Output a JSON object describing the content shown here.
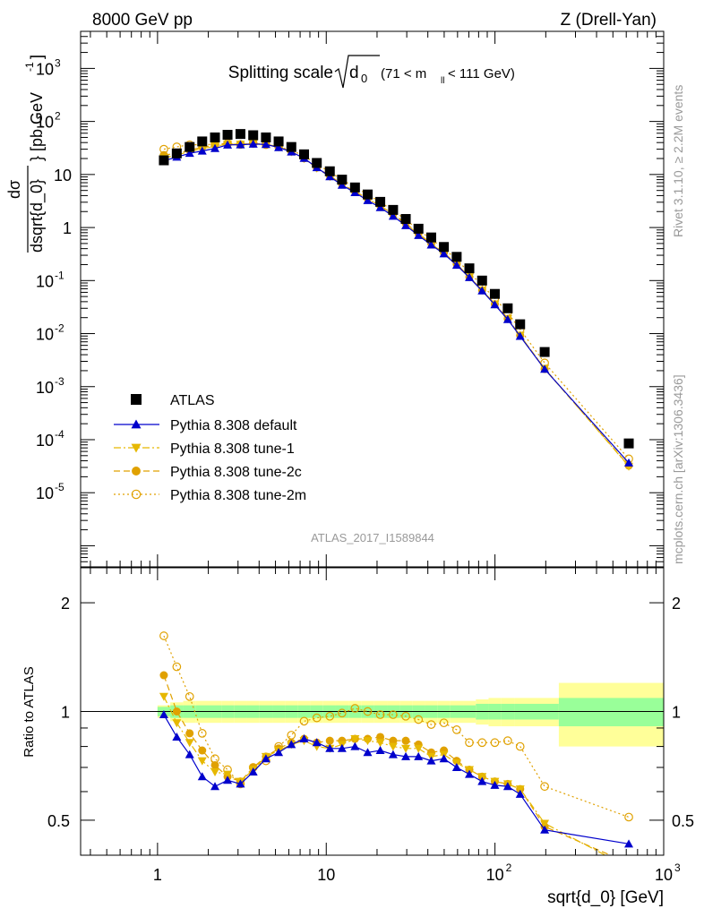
{
  "header": {
    "left": "8000 GeV pp",
    "right": "Z (Drell-Yan)"
  },
  "watermark": {
    "rivet": "Rivet 3.1.10, ≥ 2.2M events",
    "mcplots": "mcplots.cern.ch [arXiv:1306.3436]"
  },
  "chart_data": {
    "type": "scatter",
    "title": "Splitting scale √d₀ (71 < m_ll < 111 GeV)",
    "title_main": "Splitting scale",
    "title_sym": "d",
    "title_sub": "0",
    "title_range": "(71 < m",
    "title_range_sub": "ll",
    "title_range_end": " < 111 GeV)",
    "analysis_label": "ATLAS_2017_I1589844",
    "xlabel": "sqrt{d_0} [GeV]",
    "ylabel_top": "dσ",
    "ylabel_bottom": "dsqrt{d_0}",
    "ylabel_units": "} [pb,GeV",
    "ylabel_units_sup": "-1",
    "ylabel_units_end": "]",
    "ylabel_ratio": "Ratio to ATLAS",
    "xscale": "log",
    "yscale": "log",
    "xlim": [
      0.35,
      1000
    ],
    "ylim": [
      4e-07,
      5000
    ],
    "ratio_ylim": [
      0.4,
      2.5
    ],
    "legend_position": "bottom-left",
    "x_tick_labels": [
      "1",
      "10",
      "10",
      "10"
    ],
    "x_tick_sups": [
      "",
      "",
      "2",
      "3"
    ],
    "y_tick_labels": [
      "10",
      "10",
      "10",
      "10",
      "10",
      "1",
      "10",
      "10",
      "10",
      "10",
      "10"
    ],
    "y_tick_sups": [
      "-5",
      "-4",
      "-3",
      "-2",
      "-1",
      "",
      "",
      "2",
      "3",
      "",
      ""
    ],
    "ratio_tick_labels": [
      "0.5",
      "1",
      "2"
    ],
    "x": [
      1.09,
      1.3,
      1.55,
      1.84,
      2.19,
      2.6,
      3.1,
      3.69,
      4.39,
      5.22,
      6.21,
      7.39,
      8.79,
      10.5,
      12.4,
      14.8,
      17.6,
      20.9,
      24.9,
      29.6,
      35.2,
      41.9,
      49.8,
      59.3,
      70.5,
      83.9,
      99.8,
      119,
      141,
      197,
      621
    ],
    "series": [
      {
        "name": "ATLAS",
        "color": "#000000",
        "marker": "square",
        "values": [
          18.5,
          25,
          33,
          42,
          50,
          56,
          58,
          55,
          50,
          42,
          33,
          24,
          16.5,
          11.5,
          8,
          5.7,
          4.2,
          3.05,
          2.15,
          1.45,
          0.95,
          0.65,
          0.43,
          0.28,
          0.17,
          0.1,
          0.056,
          0.03,
          0.015,
          0.0045,
          8.5e-05
        ]
      },
      {
        "name": "Pythia 8.308 default",
        "color": "#0000cc",
        "marker": "triangle-up",
        "line": "solid",
        "values": [
          18.1,
          21.3,
          25.1,
          27.7,
          31.0,
          36.1,
          36.4,
          37.5,
          36.9,
          32.3,
          26.7,
          20.2,
          13.5,
          9.1,
          6.3,
          4.56,
          3.24,
          2.38,
          1.64,
          1.09,
          0.71,
          0.47,
          0.32,
          0.195,
          0.114,
          0.064,
          0.035,
          0.0185,
          0.0089,
          0.00213,
          3.65e-05
        ]
      },
      {
        "name": "Pythia 8.308 tune-1",
        "color": "#e6b800",
        "marker": "triangle-down",
        "line": "dashdot",
        "values": [
          20.4,
          23.3,
          27.1,
          30.7,
          34.0,
          37.5,
          37.1,
          38.1,
          37.5,
          32.8,
          26.6,
          19.9,
          13.2,
          9.1,
          6.5,
          4.8,
          3.5,
          2.5,
          1.73,
          1.15,
          0.75,
          0.49,
          0.33,
          0.203,
          0.117,
          0.066,
          0.036,
          0.019,
          0.0092,
          0.0022,
          3.15e-05
        ]
      },
      {
        "name": "Pythia 8.308 tune-2c",
        "color": "#e0a100",
        "marker": "circle",
        "line": "dashed",
        "values": [
          23.3,
          25.0,
          28.7,
          32.8,
          35.5,
          37.0,
          37.1,
          38.5,
          37.5,
          33.2,
          27.0,
          20.2,
          13.5,
          9.5,
          6.6,
          4.8,
          3.5,
          2.58,
          1.79,
          1.2,
          0.77,
          0.5,
          0.335,
          0.205,
          0.117,
          0.066,
          0.036,
          0.019,
          0.0092,
          0.00215,
          3.25e-05
        ]
      },
      {
        "name": "Pythia 8.308 tune-2m",
        "color": "#e0a100",
        "marker": "circle-open",
        "line": "dotted",
        "values": [
          30.0,
          33.2,
          36.3,
          36.5,
          37.2,
          38.6,
          36.8,
          38.4,
          36.5,
          33.5,
          28.3,
          22.5,
          15.7,
          11.2,
          7.9,
          5.8,
          4.2,
          3.0,
          2.1,
          1.4,
          0.9,
          0.6,
          0.4,
          0.25,
          0.14,
          0.082,
          0.046,
          0.025,
          0.012,
          0.0028,
          4.35e-05
        ]
      }
    ],
    "ratio_series": [
      {
        "name": "Pythia 8.308 default",
        "values": [
          0.98,
          0.85,
          0.76,
          0.66,
          0.62,
          0.645,
          0.63,
          0.68,
          0.74,
          0.77,
          0.81,
          0.84,
          0.82,
          0.79,
          0.79,
          0.8,
          0.77,
          0.78,
          0.76,
          0.75,
          0.75,
          0.73,
          0.74,
          0.7,
          0.67,
          0.64,
          0.625,
          0.62,
          0.59,
          0.47,
          0.43
        ]
      },
      {
        "name": "Pythia 8.308 tune-1",
        "values": [
          1.1,
          0.93,
          0.82,
          0.73,
          0.68,
          0.67,
          0.64,
          0.69,
          0.75,
          0.78,
          0.81,
          0.83,
          0.8,
          0.79,
          0.81,
          0.84,
          0.83,
          0.82,
          0.8,
          0.79,
          0.79,
          0.75,
          0.76,
          0.72,
          0.69,
          0.66,
          0.64,
          0.63,
          0.61,
          0.49,
          0.37
        ]
      },
      {
        "name": "Pythia 8.308 tune-2c",
        "values": [
          1.26,
          1.0,
          0.87,
          0.78,
          0.71,
          0.66,
          0.64,
          0.7,
          0.75,
          0.79,
          0.82,
          0.84,
          0.82,
          0.83,
          0.83,
          0.84,
          0.84,
          0.85,
          0.83,
          0.83,
          0.81,
          0.77,
          0.78,
          0.73,
          0.69,
          0.66,
          0.64,
          0.63,
          0.61,
          0.48,
          0.38
        ]
      },
      {
        "name": "Pythia 8.308 tune-2m",
        "values": [
          1.62,
          1.33,
          1.1,
          0.87,
          0.74,
          0.69,
          0.63,
          0.7,
          0.73,
          0.8,
          0.86,
          0.94,
          0.96,
          0.97,
          0.99,
          1.02,
          1.0,
          0.98,
          0.98,
          0.97,
          0.95,
          0.92,
          0.93,
          0.89,
          0.82,
          0.82,
          0.82,
          0.83,
          0.8,
          0.62,
          0.51
        ]
      }
    ],
    "ratio_bands": {
      "bin_edges": [
        1.0,
        1.19,
        1.42,
        1.69,
        2.01,
        2.39,
        2.84,
        3.38,
        4.02,
        4.79,
        5.69,
        6.77,
        8.06,
        9.58,
        11.4,
        13.6,
        16.1,
        19.2,
        22.9,
        27.2,
        32.3,
        38.5,
        45.8,
        54.4,
        64.7,
        77.0,
        91.6,
        109,
        130,
        239,
        1000
      ],
      "outer_halfwidth": [
        0.04,
        0.06,
        0.07,
        0.07,
        0.07,
        0.07,
        0.07,
        0.07,
        0.07,
        0.07,
        0.07,
        0.07,
        0.07,
        0.07,
        0.07,
        0.07,
        0.07,
        0.07,
        0.07,
        0.07,
        0.07,
        0.07,
        0.07,
        0.07,
        0.07,
        0.08,
        0.09,
        0.09,
        0.09,
        0.2,
        0.2
      ],
      "inner_halfwidth": [
        0.03,
        0.04,
        0.04,
        0.04,
        0.04,
        0.04,
        0.04,
        0.04,
        0.04,
        0.04,
        0.04,
        0.04,
        0.04,
        0.04,
        0.04,
        0.04,
        0.04,
        0.04,
        0.04,
        0.04,
        0.04,
        0.04,
        0.04,
        0.04,
        0.04,
        0.05,
        0.05,
        0.05,
        0.05,
        0.09,
        0.09
      ],
      "outer_color": "#ffff99",
      "inner_color": "#99ff99"
    }
  }
}
